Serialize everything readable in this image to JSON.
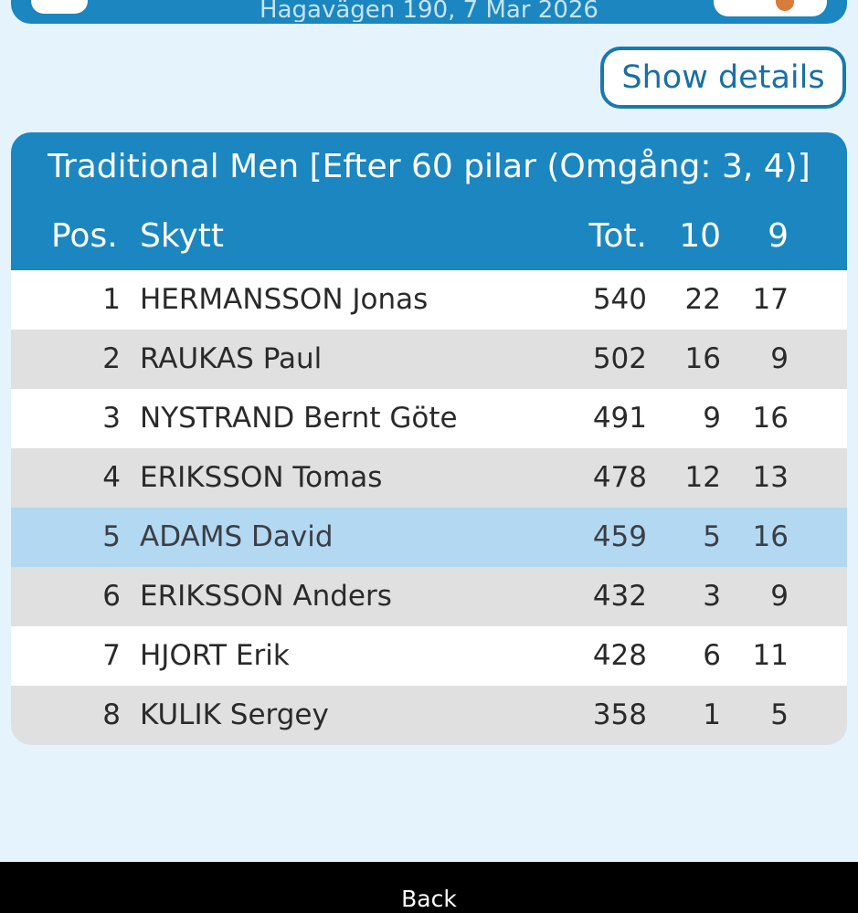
{
  "header": {
    "subtitle": "Hagavägen 190, 7 Mar 2026"
  },
  "details_button": {
    "label": "Show details"
  },
  "results": {
    "title": "Traditional Men [Efter 60 pilar (Omgång: 3, 4)]",
    "columns": {
      "pos": "Pos.",
      "name": "Skytt",
      "tot": "Tot.",
      "ten": "10",
      "nine": "9"
    },
    "rows": [
      {
        "pos": "1",
        "name": "HERMANSSON Jonas",
        "tot": "540",
        "ten": "22",
        "nine": "17"
      },
      {
        "pos": "2",
        "name": "RAUKAS Paul",
        "tot": "502",
        "ten": "16",
        "nine": "9"
      },
      {
        "pos": "3",
        "name": "NYSTRAND Bernt Göte",
        "tot": "491",
        "ten": "9",
        "nine": "16"
      },
      {
        "pos": "4",
        "name": "ERIKSSON Tomas",
        "tot": "478",
        "ten": "12",
        "nine": "13"
      },
      {
        "pos": "5",
        "name": "ADAMS David",
        "tot": "459",
        "ten": "5",
        "nine": "16"
      },
      {
        "pos": "6",
        "name": "ERIKSSON Anders",
        "tot": "432",
        "ten": "3",
        "nine": "9"
      },
      {
        "pos": "7",
        "name": "HJORT Erik",
        "tot": "428",
        "ten": "6",
        "nine": "11"
      },
      {
        "pos": "8",
        "name": "KULIK Sergey",
        "tot": "358",
        "ten": "1",
        "nine": "5"
      }
    ]
  },
  "bottom_bar": {
    "back_label": "Back"
  },
  "colors": {
    "accent": "#1b86bf",
    "background": "#e5f4fc",
    "highlight_row": "#b3d8f2",
    "alt_row": "#e0e0e0"
  }
}
